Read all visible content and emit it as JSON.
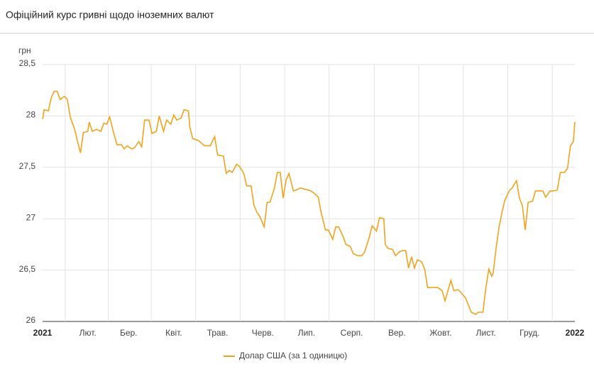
{
  "chart_data": {
    "type": "line",
    "title": "Офіційний курс гривні щодо іноземних валют",
    "y_unit": "грн",
    "x": [
      0,
      1,
      4,
      6,
      8,
      10,
      12,
      15,
      17,
      19,
      22,
      24,
      26,
      28,
      31,
      32,
      34,
      37,
      40,
      42,
      44,
      46,
      49,
      51,
      54,
      56,
      58,
      61,
      63,
      66,
      68,
      70,
      73,
      75,
      78,
      80,
      83,
      85,
      88,
      90,
      92,
      95,
      97,
      100,
      101,
      103,
      107,
      111,
      115,
      118,
      120,
      124,
      126,
      128,
      130,
      133,
      135,
      138,
      140,
      143,
      145,
      147,
      149,
      152,
      154,
      156,
      159,
      161,
      163,
      165,
      167,
      169,
      172,
      174,
      177,
      179,
      182,
      184,
      186,
      189,
      191,
      194,
      196,
      199,
      201,
      203,
      206,
      208,
      211,
      213,
      216,
      219,
      221,
      224,
      226,
      229,
      231,
      234,
      235,
      237,
      240,
      242,
      245,
      247,
      249,
      251,
      253,
      255,
      257,
      260,
      262,
      264,
      266,
      269,
      271,
      274,
      276,
      278,
      280,
      282,
      285,
      287,
      290,
      292,
      294,
      297,
      299,
      302,
      304,
      306,
      308,
      309,
      311,
      313,
      315,
      317,
      320,
      322,
      325,
      327,
      329,
      331,
      333,
      336,
      338,
      341,
      343,
      345,
      348,
      350,
      353,
      355,
      358,
      360,
      362,
      364,
      365
    ],
    "series": [
      {
        "name": "Долар США (за 1 одиницю)",
        "color": "#f0a31b",
        "values": [
          27.97,
          28.06,
          28.05,
          28.18,
          28.24,
          28.24,
          28.16,
          28.19,
          28.16,
          27.99,
          27.87,
          27.75,
          27.64,
          27.84,
          27.85,
          27.94,
          27.85,
          27.87,
          27.85,
          27.93,
          27.92,
          27.99,
          27.82,
          27.72,
          27.72,
          27.68,
          27.71,
          27.68,
          27.69,
          27.75,
          27.7,
          27.96,
          27.96,
          27.83,
          27.85,
          28.0,
          27.85,
          27.96,
          27.92,
          28.01,
          27.96,
          27.98,
          28.06,
          28.05,
          27.89,
          27.78,
          27.76,
          27.71,
          27.71,
          27.8,
          27.62,
          27.61,
          27.44,
          27.47,
          27.45,
          27.53,
          27.51,
          27.44,
          27.32,
          27.32,
          27.13,
          27.06,
          27.02,
          26.92,
          27.16,
          27.16,
          27.3,
          27.45,
          27.45,
          27.2,
          27.38,
          27.44,
          27.27,
          27.28,
          27.3,
          27.29,
          27.28,
          27.27,
          27.25,
          27.21,
          27.06,
          26.89,
          26.89,
          26.8,
          26.92,
          26.92,
          26.83,
          26.75,
          26.73,
          26.66,
          26.64,
          26.64,
          26.68,
          26.82,
          26.93,
          26.88,
          27.01,
          27.0,
          26.75,
          26.71,
          26.7,
          26.64,
          26.68,
          26.69,
          26.69,
          26.52,
          26.63,
          26.52,
          26.6,
          26.58,
          26.51,
          26.33,
          26.33,
          26.33,
          26.33,
          26.3,
          26.2,
          26.3,
          26.4,
          26.3,
          26.31,
          26.28,
          26.23,
          26.16,
          26.09,
          26.07,
          26.09,
          26.09,
          26.33,
          26.51,
          26.44,
          26.47,
          26.71,
          26.92,
          27.06,
          27.18,
          27.27,
          27.3,
          27.37,
          27.2,
          27.13,
          26.89,
          27.16,
          27.17,
          27.27,
          27.27,
          27.27,
          27.21,
          27.27,
          27.27,
          27.28,
          27.45,
          27.45,
          27.49,
          27.71,
          27.75,
          27.94
        ]
      }
    ],
    "xlim": [
      0,
      365
    ],
    "xticks": [
      {
        "value": 0,
        "label": "2021"
      },
      {
        "value": 31,
        "label": "Лют."
      },
      {
        "value": 59,
        "label": "Бер."
      },
      {
        "value": 90,
        "label": "Квіт."
      },
      {
        "value": 120,
        "label": "Трав."
      },
      {
        "value": 151,
        "label": "Черв."
      },
      {
        "value": 181,
        "label": "Лип."
      },
      {
        "value": 212,
        "label": "Серп."
      },
      {
        "value": 243,
        "label": "Вер."
      },
      {
        "value": 273,
        "label": "Жовт."
      },
      {
        "value": 304,
        "label": "Лист."
      },
      {
        "value": 334,
        "label": "Груд."
      },
      {
        "value": 365,
        "label": "2022"
      }
    ],
    "ylim": [
      26,
      28.5
    ],
    "yticks": [
      26,
      {
        "value": 26.5,
        "label": "26,5"
      },
      27,
      {
        "value": 27.5,
        "label": "27,5"
      },
      28,
      {
        "value": 28.5,
        "label": "28,5"
      }
    ],
    "grid": true
  }
}
